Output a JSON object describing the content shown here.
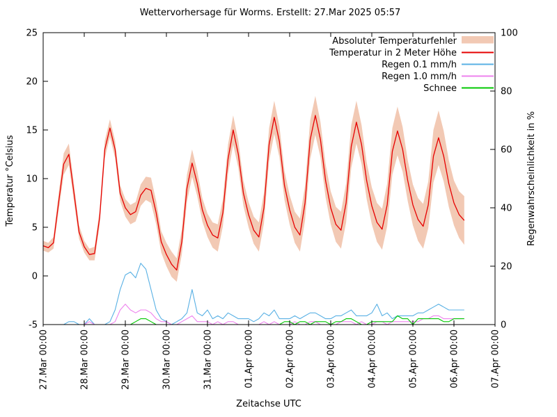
{
  "title": "Wettervorhersage für Worms. Erstellt: 27.Mar 2025 05:57",
  "chart_data": {
    "type": "line",
    "title": "Wettervorhersage für Worms. Erstellt: 27.Mar 2025 05:57",
    "xlabel": "Zeitachse UTC",
    "ylabel_left": "Temperatur °Celsius",
    "ylabel_right": "Regenwahrscheinlichkeit in %",
    "ylim_left": [
      -5,
      25
    ],
    "ylim_right": [
      0,
      100
    ],
    "y_ticks_left": [
      -5,
      0,
      5,
      10,
      15,
      20,
      25
    ],
    "y_ticks_right": [
      0,
      20,
      40,
      60,
      80,
      100
    ],
    "x_tick_labels": [
      "27.Mar 00:00",
      "28.Mar 00:00",
      "29.Mar 00:00",
      "30.Mar 00:00",
      "31.Mar 00:00",
      "01.Apr 00:00",
      "02.Apr 00:00",
      "03.Apr 00:00",
      "04.Apr 00:00",
      "05.Apr 00:00",
      "06.Apr 00:00",
      "07.Apr 00:00"
    ],
    "x_range_days": 11,
    "time_step_hours": 3,
    "grid": false,
    "legend_position": "top-right",
    "series": [
      {
        "name": "Absoluter Temperaturfehler",
        "type": "band",
        "axis": "left",
        "color": "#f2c9b4",
        "delta": [
          0.5,
          0.5,
          0.6,
          0.9,
          1.1,
          1.1,
          0.9,
          0.7,
          0.6,
          0.6,
          0.7,
          0.8,
          0.9,
          0.9,
          0.9,
          0.8,
          0.9,
          1.0,
          1.0,
          1.1,
          1.2,
          1.3,
          1.2,
          1.1,
          1.2,
          1.3,
          1.2,
          1.3,
          1.4,
          1.4,
          1.3,
          1.2,
          1.2,
          1.3,
          1.4,
          1.4,
          1.5,
          1.5,
          1.4,
          1.3,
          1.3,
          1.4,
          1.5,
          1.6,
          1.7,
          1.7,
          1.6,
          1.5,
          1.5,
          1.6,
          1.7,
          1.8,
          2.0,
          2.0,
          1.8,
          1.7,
          1.7,
          1.8,
          1.9,
          2.0,
          2.2,
          2.2,
          2.0,
          1.9,
          1.9,
          2.0,
          2.1,
          2.2,
          2.4,
          2.5,
          2.3,
          2.1,
          2.1,
          2.2,
          2.3,
          2.4,
          2.7,
          2.8,
          2.6,
          2.4,
          2.3,
          2.4,
          2.5
        ]
      },
      {
        "name": "Temperatur in 2 Meter Höhe",
        "type": "line",
        "axis": "left",
        "color": "#e60000",
        "values": [
          3.1,
          2.9,
          3.4,
          7.5,
          11.5,
          12.5,
          8.5,
          4.5,
          3.0,
          2.2,
          2.3,
          6.0,
          13.0,
          15.2,
          13.0,
          8.5,
          7.0,
          6.3,
          6.6,
          8.3,
          9.0,
          8.8,
          6.5,
          3.5,
          2.2,
          1.2,
          0.6,
          3.5,
          9.0,
          11.6,
          9.5,
          6.8,
          5.2,
          4.2,
          3.9,
          6.5,
          12.0,
          15.0,
          12.5,
          8.5,
          6.3,
          4.7,
          4.0,
          7.0,
          13.5,
          16.3,
          13.8,
          9.3,
          6.8,
          5.0,
          4.2,
          7.5,
          14.0,
          16.5,
          14.0,
          9.8,
          7.0,
          5.3,
          4.7,
          7.5,
          13.3,
          15.8,
          13.5,
          9.8,
          7.2,
          5.5,
          4.8,
          7.3,
          12.8,
          14.9,
          13.0,
          9.8,
          7.3,
          5.8,
          5.1,
          7.3,
          12.3,
          14.2,
          12.3,
          9.5,
          7.5,
          6.3,
          5.7
        ]
      },
      {
        "name": "Regen 0.1 mm/h",
        "type": "line",
        "axis": "right",
        "color": "#58b0e4",
        "values": [
          0,
          0,
          0,
          0,
          0,
          1,
          1,
          0,
          0,
          2,
          0,
          0,
          0,
          1,
          5,
          12,
          17,
          18,
          16,
          21,
          19,
          12,
          5,
          2,
          1,
          0,
          1,
          2,
          4,
          12,
          4,
          3,
          5,
          2,
          3,
          2,
          4,
          3,
          2,
          2,
          2,
          1,
          2,
          4,
          3,
          5,
          2,
          2,
          2,
          3,
          2,
          3,
          4,
          4,
          3,
          2,
          2,
          3,
          3,
          4,
          5,
          3,
          3,
          3,
          4,
          7,
          3,
          4,
          2,
          3,
          3,
          3,
          3,
          4,
          4,
          5,
          6,
          7,
          6,
          5,
          5,
          5,
          5
        ]
      },
      {
        "name": "Regen 1.0 mm/h",
        "type": "line",
        "axis": "right",
        "color": "#ee82ee",
        "values": [
          0,
          0,
          0,
          0,
          0,
          0,
          0,
          0,
          0,
          1,
          0,
          0,
          0,
          0,
          1,
          5,
          7,
          5,
          4,
          5,
          5,
          4,
          2,
          1,
          1,
          0,
          0,
          1,
          2,
          3,
          1,
          1,
          1,
          0,
          1,
          0,
          1,
          1,
          0,
          0,
          0,
          0,
          0,
          1,
          0,
          1,
          0,
          0,
          0,
          1,
          0,
          0,
          1,
          1,
          0,
          0,
          0,
          0,
          1,
          1,
          1,
          0,
          1,
          0,
          0,
          1,
          1,
          0,
          1,
          1,
          1,
          1,
          1,
          1,
          2,
          2,
          3,
          3,
          2,
          2,
          2,
          2,
          2
        ]
      },
      {
        "name": "Schnee",
        "type": "line",
        "axis": "right",
        "color": "#00c800",
        "values": [
          0,
          0,
          0,
          0,
          0,
          0,
          0,
          0,
          0,
          0,
          0,
          0,
          0,
          0,
          0,
          0,
          0,
          0,
          1,
          2,
          2,
          1,
          0,
          0,
          0,
          0,
          0,
          0,
          0,
          0,
          0,
          0,
          0,
          0,
          0,
          0,
          0,
          0,
          0,
          0,
          0,
          0,
          0,
          0,
          0,
          0,
          0,
          1,
          1,
          0,
          1,
          1,
          0,
          1,
          1,
          1,
          0,
          1,
          1,
          2,
          2,
          1,
          0,
          0,
          1,
          1,
          1,
          1,
          1,
          3,
          2,
          2,
          0,
          2,
          2,
          2,
          2,
          2,
          1,
          1,
          2,
          2,
          2
        ]
      }
    ]
  }
}
